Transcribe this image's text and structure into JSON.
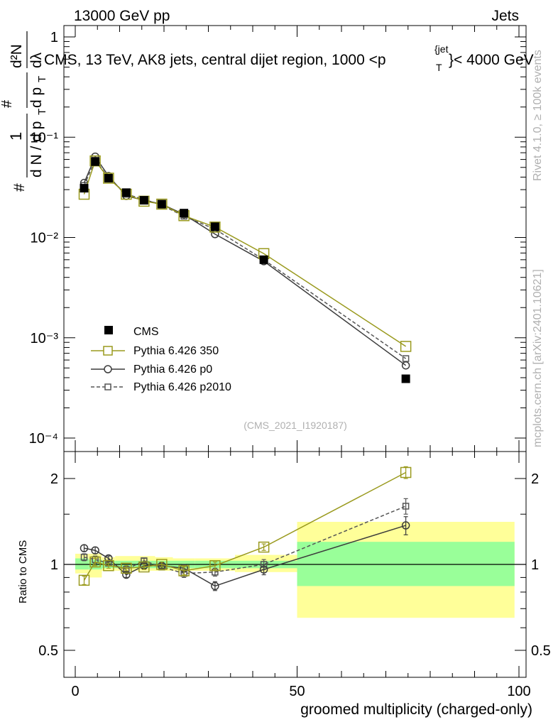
{
  "header": {
    "energy_label": "13000 GeV pp",
    "category_label": "Jets",
    "rivet_label": "Rivet 4.1.0, ≥ 100k events",
    "mcplots_label": "mcplots.cern.ch [arXiv:2401.10621]",
    "analysis_id": "(CMS_2021_I1920187)"
  },
  "colors": {
    "cms": "#000000",
    "pythia350": "#9a9a1e",
    "pythia_p0": "#3c3c3c",
    "pythia_p2010": "#555555",
    "band_inner": "#99ff99",
    "band_outer": "#ffff99"
  },
  "chart_data": [
    {
      "type": "line",
      "title": "CMS, 13 TeV, AK8 jets, central dijet region, 1000 < p_T^{jet} < 4000 GeV",
      "title_parts": {
        "main": "CMS, 13 TeV, AK8 jets, central dijet region, 1000 <p",
        "sub": "T",
        "sup": "{jet",
        "tail": "}< 4000 GeV"
      },
      "ylabel": "1/dN/dp_T d²N/dp_T dλ",
      "ylabel_parts": {
        "num": "1",
        "den": "d N / d p",
        "sub": "T",
        "main": "d p",
        "dl": "dλ",
        "top": "d²N",
        "hash": "#"
      },
      "yscale": "log",
      "ylim": [
        0.0001,
        1.5
      ],
      "xlim": [
        -3,
        100
      ],
      "ytick_labels": [
        "1",
        "10⁻¹",
        "10⁻²",
        "10⁻³",
        "10⁻⁴"
      ],
      "ytick_values": [
        1,
        0.1,
        0.01,
        0.001,
        0.0001
      ],
      "x": [
        2,
        4.5,
        7.5,
        11.5,
        15.5,
        19.5,
        24.5,
        31.5,
        42.5,
        74.5
      ],
      "series": [
        {
          "name": "CMS",
          "marker": "filled-square",
          "values": [
            0.031,
            0.057,
            0.039,
            0.028,
            0.0235,
            0.0215,
            0.0175,
            0.0128,
            0.006,
            0.00039
          ]
        },
        {
          "name": "Pythia 6.426 350",
          "marker": "open-square",
          "values": [
            0.027,
            0.058,
            0.039,
            0.027,
            0.023,
            0.0215,
            0.0165,
            0.0127,
            0.0069,
            0.00082
          ]
        },
        {
          "name": "Pythia 6.426 p0",
          "marker": "open-circle",
          "values": [
            0.035,
            0.064,
            0.041,
            0.026,
            0.0235,
            0.0215,
            0.017,
            0.0108,
            0.0058,
            0.00053
          ]
        },
        {
          "name": "Pythia 6.426 p2010",
          "marker": "open-square-small",
          "values": [
            0.033,
            0.059,
            0.0395,
            0.027,
            0.024,
            0.021,
            0.0163,
            0.0121,
            0.006,
            0.00062
          ]
        }
      ],
      "legend": [
        "CMS",
        "Pythia 6.426 350",
        "Pythia 6.426 p0",
        "Pythia 6.426 p2010"
      ],
      "legend_position": "lower-left"
    },
    {
      "type": "line",
      "title": "",
      "xlabel": "groomed multiplicity (charged-only)",
      "ylabel": "Ratio to CMS",
      "yscale": "log",
      "ylim": [
        0.4,
        2.4
      ],
      "xlim": [
        -3,
        100
      ],
      "xtick_labels": [
        "0",
        "50",
        "100"
      ],
      "xtick_values": [
        0,
        50,
        100
      ],
      "ytick_labels": [
        "0.5",
        "1",
        "2"
      ],
      "ytick_values": [
        0.5,
        1,
        2
      ],
      "x": [
        2,
        4.5,
        7.5,
        11.5,
        15.5,
        19.5,
        24.5,
        31.5,
        42.5,
        74.5
      ],
      "series": [
        {
          "name": "Pythia 6.426 350",
          "values": [
            0.88,
            1.02,
            0.99,
            0.97,
            0.98,
            1.0,
            0.95,
            0.99,
            1.15,
            2.1
          ]
        },
        {
          "name": "Pythia 6.426 p0",
          "values": [
            1.14,
            1.12,
            1.05,
            0.92,
            0.99,
            0.99,
            0.97,
            0.84,
            0.96,
            1.37
          ]
        },
        {
          "name": "Pythia 6.426 p2010",
          "values": [
            1.06,
            1.04,
            1.01,
            0.96,
            1.03,
            0.98,
            0.93,
            0.94,
            1.0,
            1.6
          ]
        }
      ],
      "error_bands": [
        {
          "x_range": [
            0,
            3
          ],
          "inner": [
            0.96,
            1.05
          ],
          "outer": [
            0.93,
            1.09
          ]
        },
        {
          "x_range": [
            3,
            6
          ],
          "inner": [
            0.96,
            1.04
          ],
          "outer": [
            0.9,
            1.09
          ]
        },
        {
          "x_range": [
            6,
            9
          ],
          "inner": [
            0.97,
            1.03
          ],
          "outer": [
            0.95,
            1.06
          ]
        },
        {
          "x_range": [
            9,
            14
          ],
          "inner": [
            0.97,
            1.03
          ],
          "outer": [
            0.95,
            1.07
          ]
        },
        {
          "x_range": [
            14,
            18
          ],
          "inner": [
            0.97,
            1.03
          ],
          "outer": [
            0.95,
            1.07
          ]
        },
        {
          "x_range": [
            18,
            22
          ],
          "inner": [
            0.97,
            1.03
          ],
          "outer": [
            0.95,
            1.06
          ]
        },
        {
          "x_range": [
            22,
            27
          ],
          "inner": [
            0.97,
            1.03
          ],
          "outer": [
            0.95,
            1.05
          ]
        },
        {
          "x_range": [
            27,
            36
          ],
          "inner": [
            0.97,
            1.03
          ],
          "outer": [
            0.95,
            1.05
          ]
        },
        {
          "x_range": [
            36,
            50
          ],
          "inner": [
            0.97,
            1.03
          ],
          "outer": [
            0.94,
            1.08
          ]
        },
        {
          "x_range": [
            50,
            99
          ],
          "inner": [
            0.84,
            1.2
          ],
          "outer": [
            0.65,
            1.41
          ]
        }
      ],
      "error_bars": {
        "Pythia 6.426 350": [
          0.03,
          0.03,
          0.02,
          0.02,
          0.02,
          0.02,
          0.03,
          0.03,
          0.03,
          0.1
        ],
        "Pythia 6.426 p0": [
          0.03,
          0.03,
          0.02,
          0.02,
          0.02,
          0.02,
          0.03,
          0.03,
          0.04,
          0.1
        ],
        "Pythia 6.426 p2010": [
          0.03,
          0.03,
          0.02,
          0.02,
          0.02,
          0.02,
          0.03,
          0.03,
          0.04,
          0.1
        ]
      }
    }
  ]
}
